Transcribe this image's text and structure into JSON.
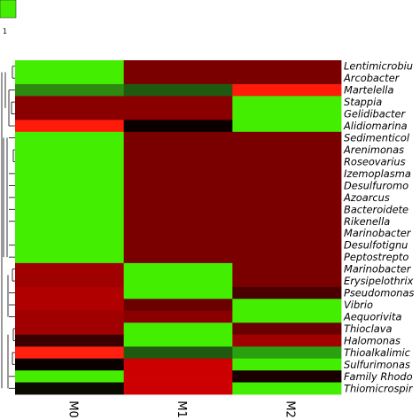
{
  "chart_data": {
    "type": "heatmap",
    "columns": [
      "M0",
      "M1",
      "M2"
    ],
    "rows": [
      "Lentimicrobiu",
      "Arcobacter",
      "Martelella",
      "Stappia",
      "Gelidibacter",
      "Alidiomarina",
      "Sedimenticol",
      "Arenimonas",
      "Roseovarius",
      "Izemoplasma",
      "Desulfuromo",
      "Azoarcus",
      "Bacteroidete",
      "Rikenella",
      "Marinobacter",
      "Desulfotignu",
      "Peptostrepto",
      "Marinobacter",
      "Erysipelothrix",
      "Pseudomonas",
      "Vibrio",
      "Aequorivita",
      "Thioclava",
      "Halomonas",
      "Thioalkalimic",
      "Sulfurimonas",
      "Family Rhodo",
      "Thiomicrospir"
    ],
    "colors": [
      [
        "#44ee00",
        "#7a0000",
        "#7a0000"
      ],
      [
        "#44ee00",
        "#7a0000",
        "#7a0000"
      ],
      [
        "#2d8a10",
        "#1f5a10",
        "#ff1a0a"
      ],
      [
        "#8a0000",
        "#8a0000",
        "#44ee00"
      ],
      [
        "#8a0000",
        "#8a0000",
        "#44ee00"
      ],
      [
        "#ff1a0a",
        "#0a0000",
        "#44ee00"
      ],
      [
        "#44ee00",
        "#7a0000",
        "#7a0000"
      ],
      [
        "#44ee00",
        "#7a0000",
        "#7a0000"
      ],
      [
        "#44ee00",
        "#7a0000",
        "#7a0000"
      ],
      [
        "#44ee00",
        "#7a0000",
        "#7a0000"
      ],
      [
        "#44ee00",
        "#7a0000",
        "#7a0000"
      ],
      [
        "#44ee00",
        "#7a0000",
        "#7a0000"
      ],
      [
        "#44ee00",
        "#7a0000",
        "#7a0000"
      ],
      [
        "#44ee00",
        "#7a0000",
        "#7a0000"
      ],
      [
        "#44ee00",
        "#7a0000",
        "#7a0000"
      ],
      [
        "#44ee00",
        "#7a0000",
        "#7a0000"
      ],
      [
        "#44ee00",
        "#7a0000",
        "#7a0000"
      ],
      [
        "#a00000",
        "#44ee00",
        "#7a0000"
      ],
      [
        "#a00000",
        "#44ee00",
        "#7a0000"
      ],
      [
        "#b00000",
        "#44ee00",
        "#4a0000"
      ],
      [
        "#b00000",
        "#6a0000",
        "#44ee00"
      ],
      [
        "#a00000",
        "#8a0000",
        "#44ee00"
      ],
      [
        "#a00000",
        "#44ee00",
        "#6a0000"
      ],
      [
        "#3a0000",
        "#44ee00",
        "#a00000"
      ],
      [
        "#ff2010",
        "#1f5a10",
        "#2aa010"
      ],
      [
        "#0a0000",
        "#cc0000",
        "#44ee00"
      ],
      [
        "#44ee00",
        "#cc0000",
        "#1a0000"
      ],
      [
        "#0a0a00",
        "#cc0000",
        "#44ee00"
      ]
    ],
    "legend": {
      "colors": [
        "#44ee00",
        "#7a0000"
      ],
      "tick_label": "1"
    },
    "dendrogram": true
  }
}
